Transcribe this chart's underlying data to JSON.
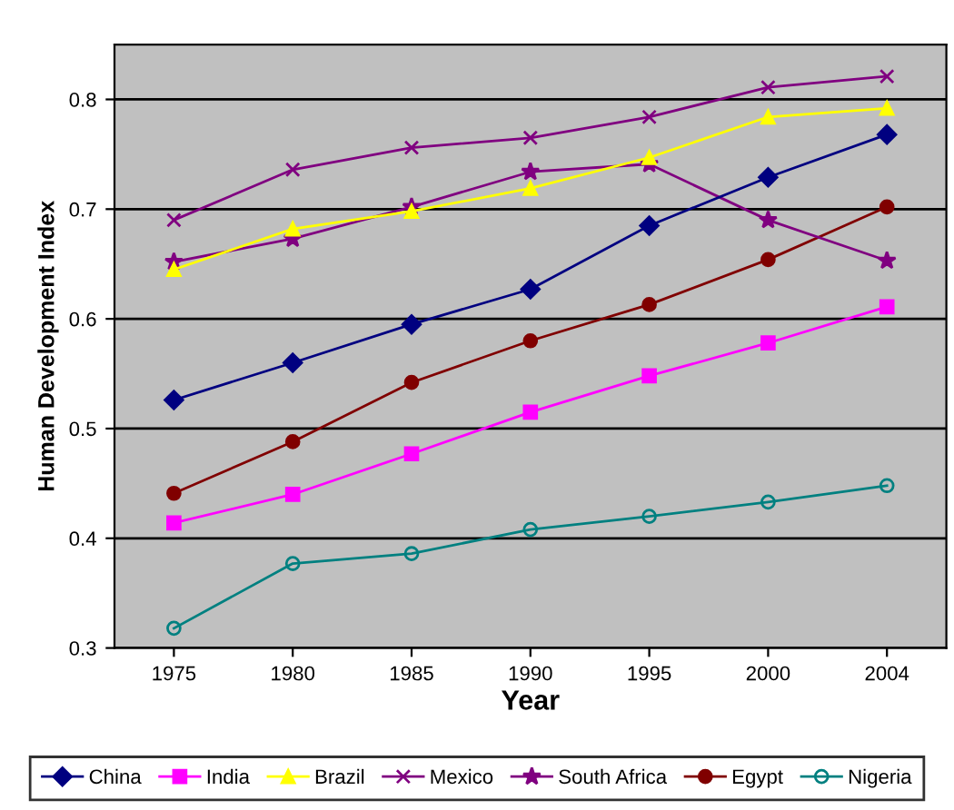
{
  "chart_data": {
    "type": "line",
    "xlabel": "Year",
    "ylabel": "Human Development Index",
    "categories": [
      "1975",
      "1980",
      "1985",
      "1990",
      "1995",
      "2000",
      "2004"
    ],
    "series": [
      {
        "name": "China",
        "color": "#000080",
        "marker": "diamond",
        "values": [
          0.526,
          0.56,
          0.595,
          0.627,
          0.685,
          0.729,
          0.768
        ]
      },
      {
        "name": "India",
        "color": "#ff00ff",
        "marker": "square",
        "values": [
          0.414,
          0.44,
          0.477,
          0.515,
          0.548,
          0.578,
          0.611
        ]
      },
      {
        "name": "Brazil",
        "color": "#ffff00",
        "marker": "triangle",
        "values": [
          0.645,
          0.682,
          0.698,
          0.719,
          0.747,
          0.784,
          0.792
        ]
      },
      {
        "name": "Mexico",
        "color": "#800080",
        "marker": "cross",
        "values": [
          0.69,
          0.736,
          0.756,
          0.765,
          0.784,
          0.811,
          0.821
        ]
      },
      {
        "name": "South Africa",
        "color": "#800080",
        "marker": "star",
        "values": [
          0.652,
          0.673,
          0.702,
          0.734,
          0.741,
          0.69,
          0.653
        ]
      },
      {
        "name": "Egypt",
        "color": "#800000",
        "marker": "circle",
        "values": [
          0.441,
          0.488,
          0.542,
          0.58,
          0.613,
          0.654,
          0.702
        ]
      },
      {
        "name": "Nigeria",
        "color": "#008080",
        "marker": "circle-open",
        "values": [
          0.318,
          0.377,
          0.386,
          0.408,
          0.42,
          0.433,
          0.448
        ]
      }
    ],
    "ylim": [
      0.3,
      0.85
    ],
    "yticks": [
      0.3,
      0.4,
      0.5,
      0.6,
      0.7,
      0.8
    ],
    "grid": "y",
    "legend": "bottom",
    "line_style": "solid"
  }
}
